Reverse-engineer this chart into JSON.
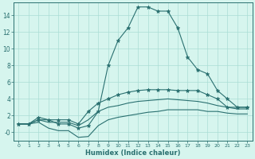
{
  "x": [
    0,
    1,
    2,
    3,
    4,
    5,
    6,
    7,
    8,
    9,
    10,
    11,
    12,
    13,
    14,
    15,
    16,
    17,
    18,
    19,
    20,
    21,
    22,
    23
  ],
  "line_main": [
    1,
    1,
    1.5,
    1.5,
    1,
    1,
    0.5,
    0.8,
    2.5,
    8,
    11,
    12.5,
    15,
    15,
    14.5,
    14.5,
    12.5,
    9,
    7.5,
    7,
    5,
    4,
    3,
    3
  ],
  "line_upper": [
    1,
    1,
    1.8,
    1.5,
    1.5,
    1.5,
    1,
    2.5,
    3.5,
    4,
    4.5,
    4.8,
    5,
    5.1,
    5.1,
    5.1,
    5,
    5,
    5,
    4.5,
    4,
    3,
    3,
    3
  ],
  "line_mid": [
    1,
    1,
    1.5,
    1.2,
    1.2,
    1.2,
    0.8,
    1.5,
    2.5,
    3,
    3.2,
    3.5,
    3.7,
    3.8,
    3.9,
    4,
    3.9,
    3.8,
    3.7,
    3.5,
    3.2,
    3,
    2.8,
    2.8
  ],
  "line_low": [
    1,
    1,
    1.2,
    0.5,
    0.2,
    0.2,
    -0.6,
    -0.5,
    0.8,
    1.5,
    1.8,
    2,
    2.2,
    2.4,
    2.5,
    2.7,
    2.7,
    2.7,
    2.7,
    2.5,
    2.5,
    2.3,
    2.2,
    2.2
  ],
  "color": "#2a7070",
  "bg_color": "#d6f5ee",
  "grid_color": "#aaddd5",
  "xlabel": "Humidex (Indice chaleur)",
  "ylim": [
    -1.0,
    15.5
  ],
  "xlim": [
    -0.5,
    23.5
  ],
  "yticks": [
    0,
    2,
    4,
    6,
    8,
    10,
    12,
    14
  ],
  "xticks": [
    0,
    1,
    2,
    3,
    4,
    5,
    6,
    7,
    8,
    9,
    10,
    11,
    12,
    13,
    14,
    15,
    16,
    17,
    18,
    19,
    20,
    21,
    22,
    23
  ]
}
